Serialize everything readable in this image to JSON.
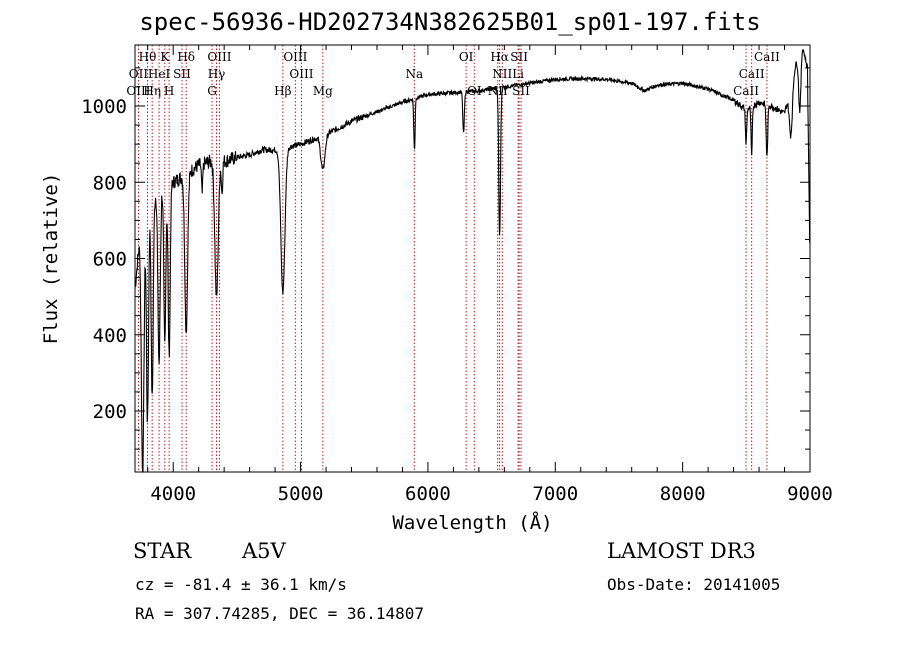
{
  "chart_data": {
    "type": "line",
    "title": "spec-56936-HD202734N382625B01_sp01-197.fits",
    "xlabel": "Wavelength (Å)",
    "ylabel": "Flux (relative)",
    "xlim": [
      3700,
      9000
    ],
    "ylim": [
      40,
      1160
    ],
    "xticks": [
      4000,
      5000,
      6000,
      7000,
      8000,
      9000
    ],
    "yticks": [
      200,
      400,
      600,
      800,
      1000
    ],
    "x_tick_labels": [
      "4000",
      "5000",
      "6000",
      "7000",
      "8000",
      "9000"
    ],
    "y_tick_labels": [
      "200",
      "400",
      "600",
      "800",
      "1000"
    ],
    "series": [
      {
        "name": "flux",
        "continuum": [
          [
            3700,
            520
          ],
          [
            3750,
            700
          ],
          [
            3800,
            730
          ],
          [
            3850,
            760
          ],
          [
            3900,
            790
          ],
          [
            4000,
            800
          ],
          [
            4100,
            820
          ],
          [
            4200,
            845
          ],
          [
            4300,
            855
          ],
          [
            4400,
            855
          ],
          [
            4500,
            865
          ],
          [
            4600,
            872
          ],
          [
            4700,
            885
          ],
          [
            4800,
            885
          ],
          [
            5000,
            900
          ],
          [
            5200,
            925
          ],
          [
            5400,
            960
          ],
          [
            5600,
            985
          ],
          [
            5800,
            1010
          ],
          [
            6000,
            1030
          ],
          [
            6200,
            1035
          ],
          [
            6400,
            1040
          ],
          [
            6600,
            1050
          ],
          [
            6800,
            1060
          ],
          [
            7000,
            1070
          ],
          [
            7200,
            1072
          ],
          [
            7400,
            1070
          ],
          [
            7600,
            1060
          ],
          [
            7700,
            1040
          ],
          [
            7800,
            1055
          ],
          [
            8000,
            1060
          ],
          [
            8200,
            1045
          ],
          [
            8400,
            1015
          ],
          [
            8500,
            990
          ],
          [
            8600,
            1010
          ],
          [
            8700,
            1000
          ],
          [
            8800,
            980
          ],
          [
            8880,
            1100
          ],
          [
            8940,
            1160
          ],
          [
            8980,
            1100
          ],
          [
            9000,
            580
          ]
        ],
        "absorption_lines": [
          [
            3760,
            680,
            10
          ],
          [
            3798,
            560,
            8
          ],
          [
            3835,
            520,
            8
          ],
          [
            3889,
            460,
            9
          ],
          [
            3934,
            420,
            8
          ],
          [
            3968,
            450,
            8
          ],
          [
            4102,
            410,
            11
          ],
          [
            4227,
            80,
            5
          ],
          [
            4340,
            360,
            13
          ],
          [
            4383,
            80,
            5
          ],
          [
            4861,
            380,
            16
          ],
          [
            5175,
            90,
            16
          ],
          [
            5890,
            60,
            4
          ],
          [
            5896,
            110,
            4
          ],
          [
            6280,
            110,
            6
          ],
          [
            6563,
            390,
            7
          ],
          [
            8498,
            90,
            5
          ],
          [
            8542,
            130,
            5
          ],
          [
            8662,
            140,
            6
          ],
          [
            8850,
            130,
            12
          ],
          [
            8920,
            150,
            9
          ]
        ]
      }
    ],
    "lines_top": [
      {
        "label": "Hθ",
        "x": 3798
      },
      {
        "label": "K",
        "x": 3934
      },
      {
        "label": "Hδ",
        "x": 4102
      },
      {
        "label": "OIII",
        "x": 4363
      },
      {
        "label": "OIII",
        "x": 4959
      },
      {
        "label": "OI",
        "x": 6300
      },
      {
        "label": "Hα",
        "x": 6563
      },
      {
        "label": "SII",
        "x": 6716
      },
      {
        "label": "CaII",
        "x": 8662
      }
    ],
    "lines_mid": [
      {
        "label": "OII",
        "x": 3727
      },
      {
        "label": "HeI",
        "x": 3889
      },
      {
        "label": "SII",
        "x": 4069
      },
      {
        "label": "Hγ",
        "x": 4340
      },
      {
        "label": "OIII",
        "x": 5007
      },
      {
        "label": "Na",
        "x": 5893
      },
      {
        "label": "NII",
        "x": 6584
      },
      {
        "label": "Li",
        "x": 6708
      },
      {
        "label": "CaII",
        "x": 8542
      }
    ],
    "lines_low": [
      {
        "label": "OIII",
        "x": 3727
      },
      {
        "label": "Hη",
        "x": 3835
      },
      {
        "label": "H",
        "x": 3968
      },
      {
        "label": "G",
        "x": 4305
      },
      {
        "label": "Hβ",
        "x": 4861
      },
      {
        "label": "Mg",
        "x": 5175
      },
      {
        "label": "OI",
        "x": 6364
      },
      {
        "label": "NII",
        "x": 6548
      },
      {
        "label": "SII",
        "x": 6731
      },
      {
        "label": "CaII",
        "x": 8498
      }
    ]
  },
  "info": {
    "object_type": "STAR",
    "spectral_class": "A5V",
    "survey": "LAMOST DR3",
    "cz": "cz = -81.4 ± 36.1 km/s",
    "obs_date": "Obs-Date: 20141005",
    "coords": "RA = 307.74285, DEC =  36.14807"
  },
  "colors": {
    "line_marker": "#b22222",
    "spectrum": "#000000",
    "axis": "#000000"
  }
}
